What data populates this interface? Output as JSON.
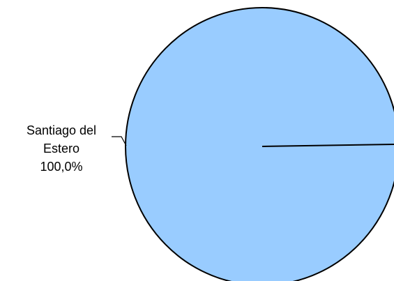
{
  "chart_data": {
    "type": "pie",
    "slices": [
      {
        "label_line1": "Santiago del",
        "label_line2": "Estero",
        "percent_label": "100,0%",
        "value": 100.0,
        "color": "#99ccff"
      }
    ]
  }
}
